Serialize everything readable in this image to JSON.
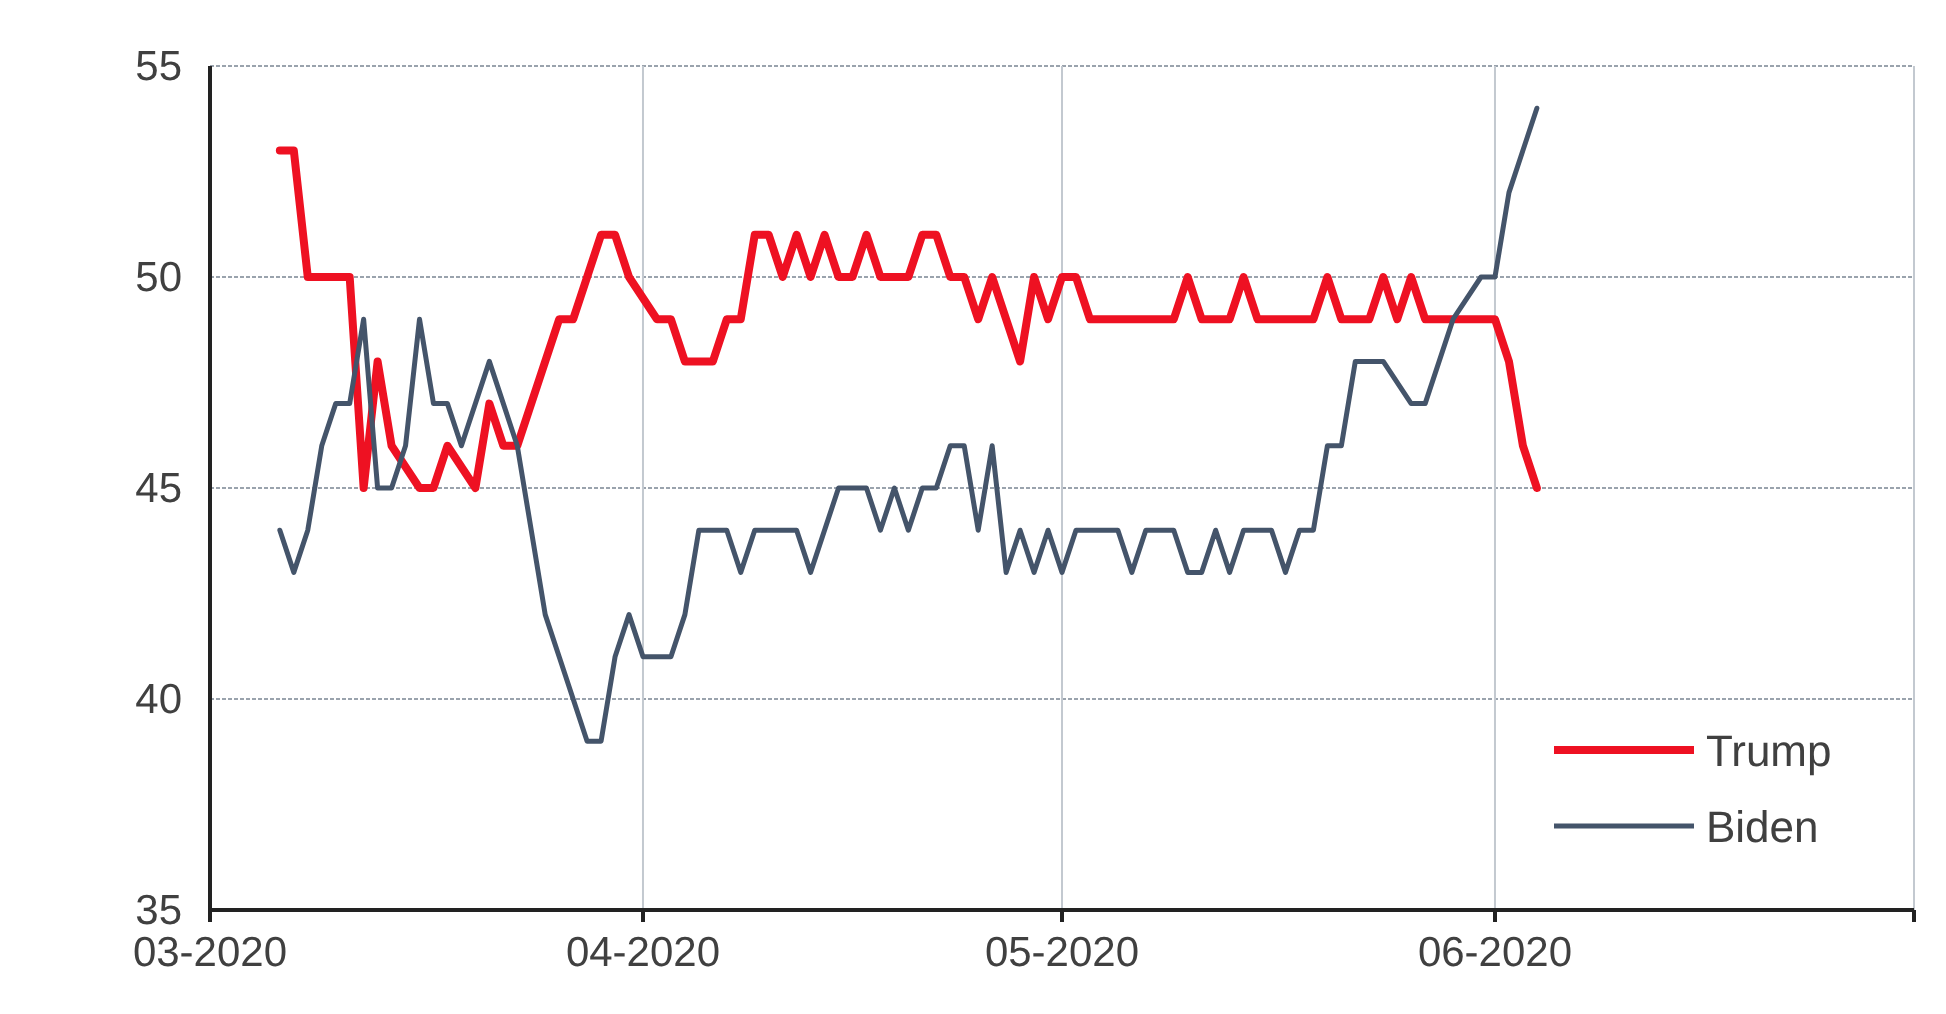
{
  "chart_data": {
    "type": "line",
    "x": [
      "2020-03-06",
      "2020-03-07",
      "2020-03-08",
      "2020-03-11",
      "2020-03-12",
      "2020-03-13",
      "2020-03-14",
      "2020-03-16",
      "2020-03-17",
      "2020-03-18",
      "2020-03-20",
      "2020-03-21",
      "2020-03-22",
      "2020-03-23",
      "2020-03-26",
      "2020-03-27",
      "2020-03-29",
      "2020-03-30",
      "2020-03-31",
      "2020-04-02",
      "2020-04-03",
      "2020-04-04",
      "2020-04-06",
      "2020-04-07",
      "2020-04-08",
      "2020-04-09",
      "2020-04-10",
      "2020-04-11",
      "2020-04-12",
      "2020-04-13",
      "2020-04-14",
      "2020-04-15",
      "2020-04-16",
      "2020-04-17",
      "2020-04-18",
      "2020-04-20",
      "2020-04-21",
      "2020-04-22",
      "2020-04-23",
      "2020-04-24",
      "2020-04-25",
      "2020-04-26",
      "2020-04-27",
      "2020-04-28",
      "2020-04-29",
      "2020-04-30",
      "2020-05-01",
      "2020-05-02",
      "2020-05-03",
      "2020-05-09",
      "2020-05-10",
      "2020-05-11",
      "2020-05-13",
      "2020-05-14",
      "2020-05-15",
      "2020-05-19",
      "2020-05-20",
      "2020-05-21",
      "2020-05-23",
      "2020-05-24",
      "2020-05-25",
      "2020-05-26",
      "2020-05-27",
      "2020-06-01",
      "2020-06-02",
      "2020-06-03",
      "2020-06-04"
    ],
    "series": [
      {
        "name": "Trump",
        "color": "#ee1122",
        "values": [
          53,
          53,
          50,
          50,
          45,
          48,
          46,
          45,
          45,
          46,
          45,
          47,
          46,
          46,
          49,
          49,
          51,
          51,
          50,
          49,
          49,
          48,
          48,
          49,
          49,
          51,
          51,
          50,
          51,
          50,
          51,
          50,
          50,
          51,
          50,
          50,
          51,
          51,
          50,
          50,
          49,
          50,
          49,
          48,
          50,
          49,
          50,
          50,
          49,
          49,
          50,
          49,
          49,
          50,
          49,
          49,
          50,
          49,
          49,
          50,
          49,
          50,
          49,
          49,
          48,
          46,
          45
        ]
      },
      {
        "name": "Biden",
        "color": "#44546a",
        "x": [
          "2020-03-06",
          "2020-03-07",
          "2020-03-08",
          "2020-03-09",
          "2020-03-10",
          "2020-03-11",
          "2020-03-12",
          "2020-03-13",
          "2020-03-14",
          "2020-03-15",
          "2020-03-16",
          "2020-03-17",
          "2020-03-18",
          "2020-03-19",
          "2020-03-21",
          "2020-03-23",
          "2020-03-24",
          "2020-03-25",
          "2020-03-26",
          "2020-03-27",
          "2020-03-28",
          "2020-03-29",
          "2020-03-30",
          "2020-03-31",
          "2020-04-01",
          "2020-04-03",
          "2020-04-04",
          "2020-04-05",
          "2020-04-07",
          "2020-04-08",
          "2020-04-09",
          "2020-04-12",
          "2020-04-13",
          "2020-04-15",
          "2020-04-17",
          "2020-04-18",
          "2020-04-19",
          "2020-04-20",
          "2020-04-21",
          "2020-04-22",
          "2020-04-23",
          "2020-04-24",
          "2020-04-25",
          "2020-04-26",
          "2020-04-27",
          "2020-04-28",
          "2020-04-29",
          "2020-04-30",
          "2020-05-01",
          "2020-05-02",
          "2020-05-05",
          "2020-05-06",
          "2020-05-07",
          "2020-05-09",
          "2020-05-10",
          "2020-05-11",
          "2020-05-12",
          "2020-05-13",
          "2020-05-14",
          "2020-05-16",
          "2020-05-17",
          "2020-05-18",
          "2020-05-19",
          "2020-05-20",
          "2020-05-21",
          "2020-05-22",
          "2020-05-24",
          "2020-05-26",
          "2020-05-27",
          "2020-05-29",
          "2020-05-31",
          "2020-06-01",
          "2020-06-02",
          "2020-06-04"
        ],
        "values": [
          44,
          43,
          44,
          46,
          47,
          47,
          49,
          45,
          45,
          46,
          49,
          47,
          47,
          46,
          48,
          46,
          44,
          42,
          41,
          40,
          39,
          39,
          41,
          42,
          41,
          41,
          42,
          44,
          44,
          43,
          44,
          44,
          43,
          45,
          45,
          44,
          45,
          44,
          45,
          45,
          46,
          46,
          44,
          46,
          43,
          44,
          43,
          44,
          43,
          44,
          44,
          43,
          44,
          44,
          43,
          43,
          44,
          43,
          44,
          44,
          43,
          44,
          44,
          46,
          46,
          48,
          48,
          47,
          47,
          49,
          50,
          50,
          52,
          54
        ]
      }
    ],
    "xlim": [
      "2020-03-01",
      "2020-07-01"
    ],
    "xticks": [
      {
        "value": "2020-03-01",
        "label": "03-2020"
      },
      {
        "value": "2020-04-01",
        "label": "04-2020"
      },
      {
        "value": "2020-05-01",
        "label": "05-2020"
      },
      {
        "value": "2020-06-01",
        "label": "06-2020"
      },
      {
        "value": "2020-07-01",
        "label": null
      }
    ],
    "ylim": [
      35,
      55
    ],
    "yticks": [
      35,
      40,
      45,
      50,
      55
    ],
    "grid": true,
    "legend": "bottom right",
    "marker": "none",
    "line_style": "solid"
  }
}
